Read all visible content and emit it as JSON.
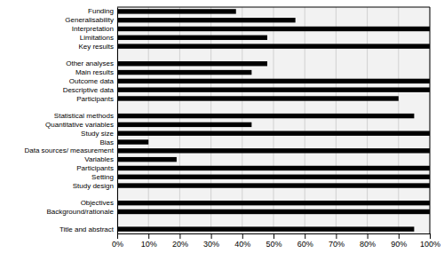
{
  "chart_data": {
    "type": "bar",
    "orientation": "horizontal",
    "categories": [
      "Funding",
      "Generalisability",
      "Interpretation",
      "Limitations",
      "Key results",
      null,
      "Other analyses",
      "Main results",
      "Outcome data",
      "Descriptive data",
      "Participants",
      null,
      "Statistical methods",
      "Quantitative variables",
      "Study size",
      "Bias",
      "Data sources/ measurement",
      "Variables",
      "Participants",
      "Setting",
      "Study design",
      null,
      "Objectives",
      "Background/rationale",
      null,
      "Title and abstract"
    ],
    "values": [
      38,
      57,
      100,
      48,
      100,
      0,
      48,
      43,
      100,
      100,
      90,
      0,
      95,
      43,
      100,
      10,
      100,
      19,
      100,
      100,
      100,
      0,
      100,
      100,
      0,
      95
    ],
    "color": "#000000",
    "xlim": [
      0,
      100
    ],
    "xticks": [
      {
        "value": 0,
        "label": "0%"
      },
      {
        "value": 10,
        "label": "10%"
      },
      {
        "value": 20,
        "label": "20%"
      },
      {
        "value": 30,
        "label": "30%"
      },
      {
        "value": 40,
        "label": "40%"
      },
      {
        "value": 50,
        "label": "50%"
      },
      {
        "value": 60,
        "label": "60%"
      },
      {
        "value": 70,
        "label": "70%"
      },
      {
        "value": 80,
        "label": "80%"
      },
      {
        "value": 90,
        "label": "90%"
      },
      {
        "value": 100,
        "label": "100%"
      }
    ],
    "grid": true
  }
}
